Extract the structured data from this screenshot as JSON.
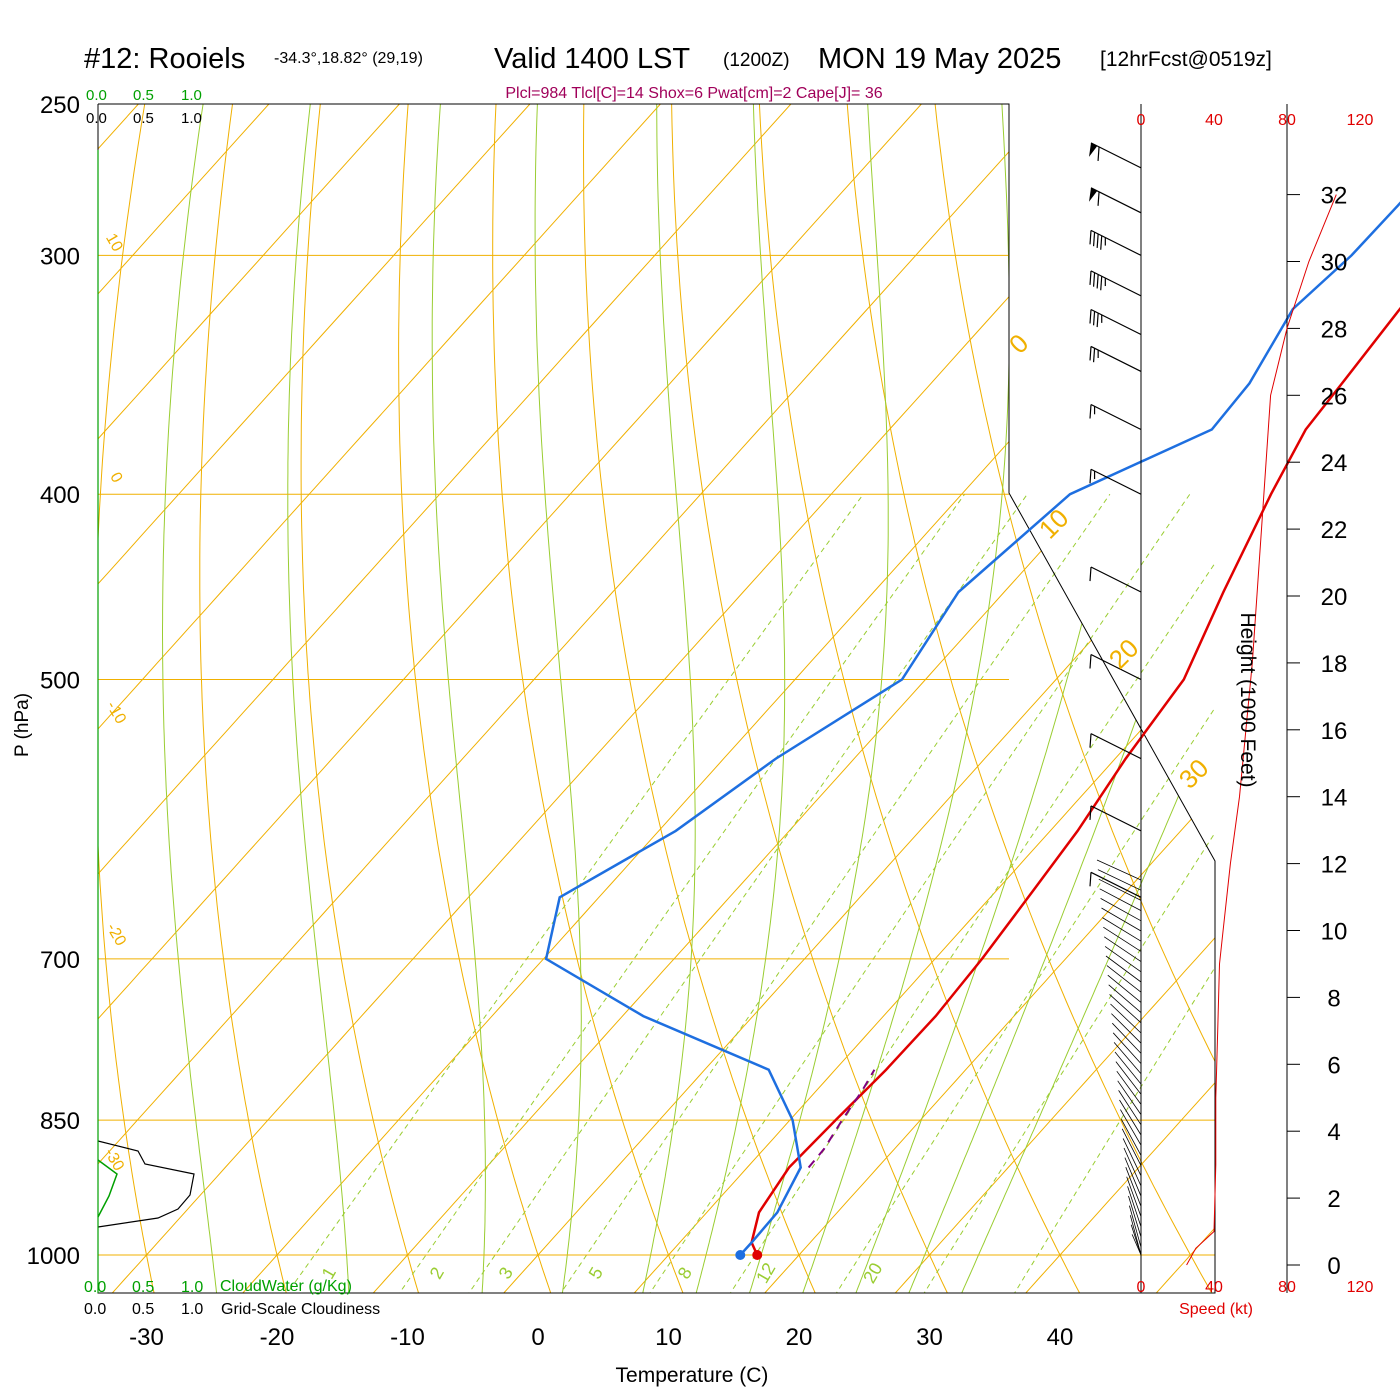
{
  "header": {
    "station": "#12: Rooiels",
    "coords": "-34.3°,18.82° (29,19)",
    "valid": "Valid 1400 LST",
    "zulu": "(1200Z)",
    "date": "MON 19 May 2025",
    "forecast": "[12hrFcst@0519z]",
    "params": "Plcl=984 Tlcl[C]=14 Shox=6 Pwat[cm]=2 Cape[J]= 36"
  },
  "colors": {
    "isotherm": "#f0b000",
    "dry_adiabat": "#f0b000",
    "moist_adiabat": "#9acd32",
    "mixing_ratio": "#9acd32",
    "temperature": "#e00000",
    "dewpoint": "#1e6fe0",
    "parcel": "#800080",
    "cloud_water": "#00a000",
    "wind_speed": "#e00000",
    "params": "#a0005a"
  },
  "labels": {
    "cloud_scale_green": [
      "0.0",
      "0.5",
      "1.0"
    ],
    "cloud_scale_black": [
      "0.0",
      "0.5",
      "1.0"
    ],
    "cloud_water": "CloudWater (g/Kg)",
    "cloudiness": "Grid-Scale Cloudiness",
    "speed_label": "Speed (kt)",
    "speed_ticks": [
      "0",
      "40",
      "80",
      "120"
    ],
    "height_label": "Height (1000 Feet)",
    "height_ticks": [
      "32",
      "30",
      "28",
      "26",
      "24",
      "22",
      "20",
      "18",
      "16",
      "14",
      "12",
      "10",
      "8",
      "6",
      "4",
      "2",
      "0"
    ]
  },
  "chart_data": {
    "type": "line",
    "subtype": "skew-T log-P sounding",
    "xlabel": "Temperature (C)",
    "ylabel": "P (hPa)",
    "xlim": [
      -35,
      45
    ],
    "ylim": [
      1000,
      250
    ],
    "y_scale": "log",
    "x_ticks": [
      "-30",
      "-20",
      "-10",
      "0",
      "10",
      "20",
      "30",
      "40"
    ],
    "y_ticks": [
      "250",
      "300",
      "400",
      "500",
      "700",
      "850",
      "1000"
    ],
    "dry_adiabat_labels": [
      "10",
      "0",
      "-10",
      "-20",
      "-30",
      "0",
      "10",
      "20",
      "30"
    ],
    "mixing_ratio_labels": [
      "1",
      "2",
      "3",
      "5",
      "8",
      "12",
      "20"
    ],
    "series": [
      {
        "key": "temperature",
        "x": [
          16.8,
          15.5,
          14.0,
          13.2,
          13.5,
          13.9,
          14.0,
          13.6,
          12.9,
          12.1,
          10.8,
          9.8,
          6.8,
          3.7,
          1.9,
          1.5,
          0.8,
          0.3,
          0.0
        ],
        "y": [
          1000,
          985,
          950,
          900,
          850,
          800,
          750,
          700,
          650,
          600,
          550,
          500,
          450,
          400,
          370,
          350,
          320,
          300,
          270
        ]
      },
      {
        "key": "dewpoint",
        "x": [
          15.5,
          15.5,
          15.4,
          14.1,
          10.2,
          4.9,
          -8.4,
          -19.8,
          -23.0,
          -18.7,
          -16.0,
          -11.8,
          -13.5,
          -11.7,
          -5.3,
          -5.6,
          -7.4,
          -6.6,
          -6.4
        ],
        "y": [
          1000,
          985,
          950,
          900,
          850,
          800,
          750,
          700,
          650,
          600,
          550,
          500,
          450,
          400,
          370,
          350,
          320,
          300,
          270
        ]
      },
      {
        "key": "parcel",
        "x": [
          14.7,
          14.6,
          14.0,
          13.5,
          13.0
        ],
        "y": [
          900,
          880,
          850,
          820,
          800
        ]
      }
    ],
    "surface_temperature": 16.8,
    "surface_dewpoint": 15.5,
    "wind_barbs": {
      "pressure_hpa": [
        270,
        285,
        300,
        315,
        330,
        345,
        370,
        400,
        450,
        500,
        550,
        600,
        650
      ],
      "speed_kt": [
        60,
        60,
        45,
        45,
        35,
        25,
        15,
        15,
        10,
        10,
        10,
        10,
        10
      ]
    },
    "wind_speed_profile": {
      "height_kft": [
        0,
        0.5,
        1,
        3,
        5,
        7,
        9,
        10,
        12,
        14,
        18,
        22,
        26,
        28,
        30,
        32
      ],
      "speed_kt": [
        25,
        30,
        40,
        41,
        41,
        42,
        43,
        45,
        49,
        54,
        61,
        66,
        71,
        80,
        92,
        107
      ]
    }
  }
}
